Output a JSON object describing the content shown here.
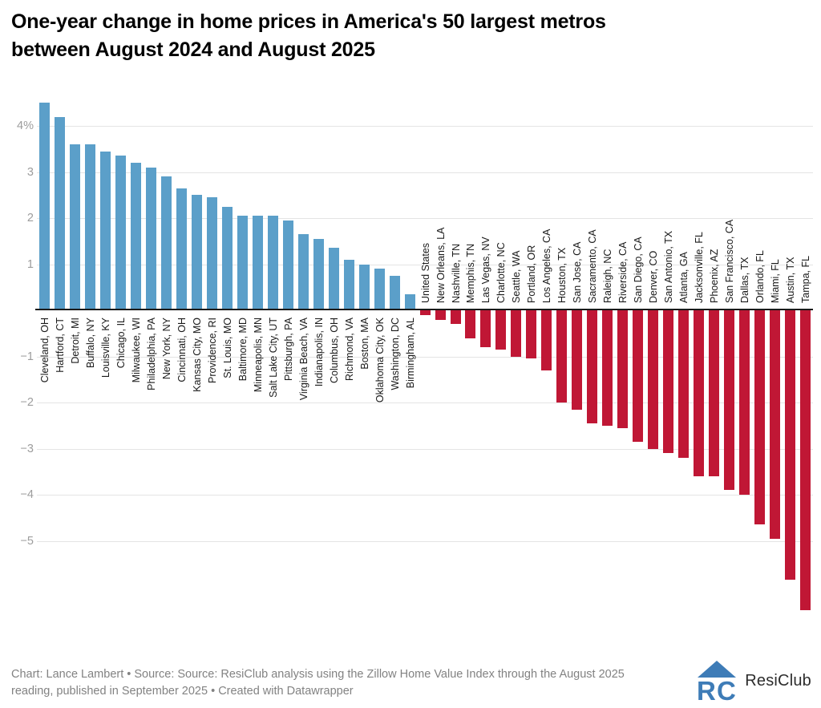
{
  "header": {
    "title_line1": "One-year change in home prices in America's 50 largest metros",
    "title_line2": "between August 2024 and August 2025"
  },
  "footer": {
    "note_line1": "Chart: Lance Lambert • Source: Source: ResiClub analysis using the Zillow Home Value Index through the August 2025",
    "note_line2": "reading, published in September 2025 • Created with Datawrapper",
    "logo_brand": "ResiClub"
  },
  "colors": {
    "positive_bar": "#5b9fc9",
    "negative_bar": "#c01735",
    "baseline": "#1a1a1a",
    "gridline": "#e4e4e4",
    "tick_label": "#9d9d9d",
    "bar_label": "#191919",
    "logo_blue": "#3e7cb7"
  },
  "chart_data": {
    "type": "bar",
    "title": "One-year change in home prices in America's 50 largest metros between August 2024 and August 2025",
    "xlabel": "",
    "ylabel": "",
    "grid": true,
    "ylim": [
      -6.9,
      4.7
    ],
    "y_ticks": [
      4,
      3,
      2,
      1,
      -1,
      -2,
      -3,
      -4,
      -5
    ],
    "y_tick_labels": [
      "4%",
      "3",
      "2",
      "1",
      "−1",
      "−2",
      "−3",
      "−4",
      "−5"
    ],
    "categories": [
      "Cleveland, OH",
      "Hartford, CT",
      "Detroit, MI",
      "Buffalo, NY",
      "Louisville, KY",
      "Chicago, IL",
      "Milwaukee, WI",
      "Philadelphia, PA",
      "New York, NY",
      "Cincinnati, OH",
      "Kansas City, MO",
      "Providence, RI",
      "St. Louis, MO",
      "Baltimore, MD",
      "Minneapolis, MN",
      "Salt Lake City, UT",
      "Pittsburgh, PA",
      "Virginia Beach, VA",
      "Indianapolis, IN",
      "Columbus, OH",
      "Richmond, VA",
      "Boston, MA",
      "Oklahoma City, OK",
      "Washington, DC",
      "Birmingham, AL",
      "United States",
      "New Orleans, LA",
      "Nashville, TN",
      "Memphis, TN",
      "Las Vegas, NV",
      "Charlotte, NC",
      "Seattle, WA",
      "Portland, OR",
      "Los Angeles, CA",
      "Houston, TX",
      "San Jose, CA",
      "Sacramento, CA",
      "Raleigh, NC",
      "Riverside, CA",
      "San Diego, CA",
      "Denver, CO",
      "San Antonio, TX",
      "Atlanta, GA",
      "Jacksonville, FL",
      "Phoenix, AZ",
      "San Francisco, CA",
      "Dallas, TX",
      "Orlando, FL",
      "Miami, FL",
      "Austin, TX",
      "Tampa, FL"
    ],
    "values": [
      4.5,
      4.2,
      3.6,
      3.6,
      3.45,
      3.35,
      3.2,
      3.1,
      2.9,
      2.65,
      2.5,
      2.45,
      2.25,
      2.05,
      2.05,
      2.05,
      1.95,
      1.65,
      1.55,
      1.35,
      1.1,
      1.0,
      0.9,
      0.75,
      0.35,
      -0.1,
      -0.2,
      -0.3,
      -0.6,
      -0.8,
      -0.85,
      -1.0,
      -1.05,
      -1.3,
      -2.0,
      -2.15,
      -2.45,
      -2.5,
      -2.55,
      -2.85,
      -3.0,
      -3.1,
      -3.2,
      -3.6,
      -3.6,
      -3.9,
      -4.0,
      -4.65,
      -4.95,
      -5.85,
      -6.5
    ]
  }
}
